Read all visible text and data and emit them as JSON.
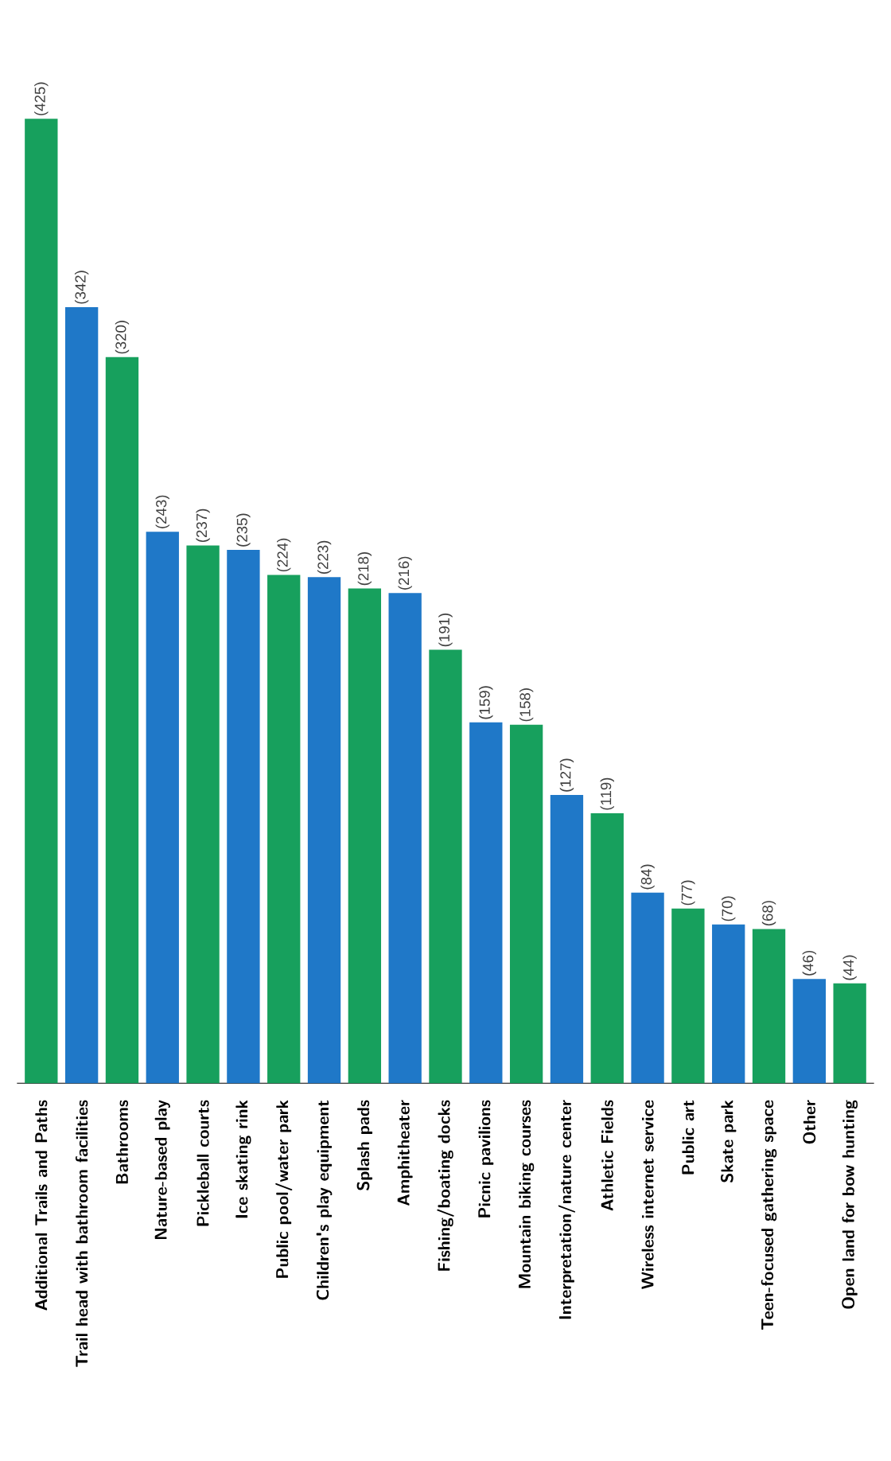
{
  "chart_data": {
    "type": "bar",
    "categories": [
      "Additional Trails and Paths",
      "Trail head with bathroom facilities",
      "Bathrooms",
      "Nature-based play",
      "Pickleball courts",
      "Ice skating rink",
      "Public pool/water park",
      "Children's play equipment",
      "Splash pads",
      "Amphitheater",
      "Fishing/boating docks",
      "Picnic pavilions",
      "Mountain biking courses",
      "Interpretation/nature center",
      "Athletic Fields",
      "Wireless internet service",
      "Public art",
      "Skate  park",
      "Teen-focused gathering space",
      "Other",
      "Open land for bow hunting"
    ],
    "values": [
      425,
      342,
      320,
      243,
      237,
      235,
      224,
      223,
      218,
      216,
      191,
      159,
      158,
      127,
      119,
      84,
      77,
      70,
      68,
      46,
      44
    ],
    "value_labels": [
      "(425)",
      "(342)",
      "(320)",
      "(243)",
      "(237)",
      "(235)",
      "(224)",
      "(223)",
      "(218)",
      "(216)",
      "(191)",
      "(159)",
      "(158)",
      "(127)",
      "(119)",
      "(84)",
      "(77)",
      "(70)",
      "(68)",
      "(46)",
      "(44)"
    ],
    "colors": [
      "#17a05d",
      "#1f78c8",
      "#17a05d",
      "#1f78c8",
      "#17a05d",
      "#1f78c8",
      "#17a05d",
      "#1f78c8",
      "#17a05d",
      "#1f78c8",
      "#17a05d",
      "#1f78c8",
      "#17a05d",
      "#1f78c8",
      "#17a05d",
      "#1f78c8",
      "#17a05d",
      "#1f78c8",
      "#17a05d",
      "#1f78c8",
      "#17a05d"
    ]
  }
}
